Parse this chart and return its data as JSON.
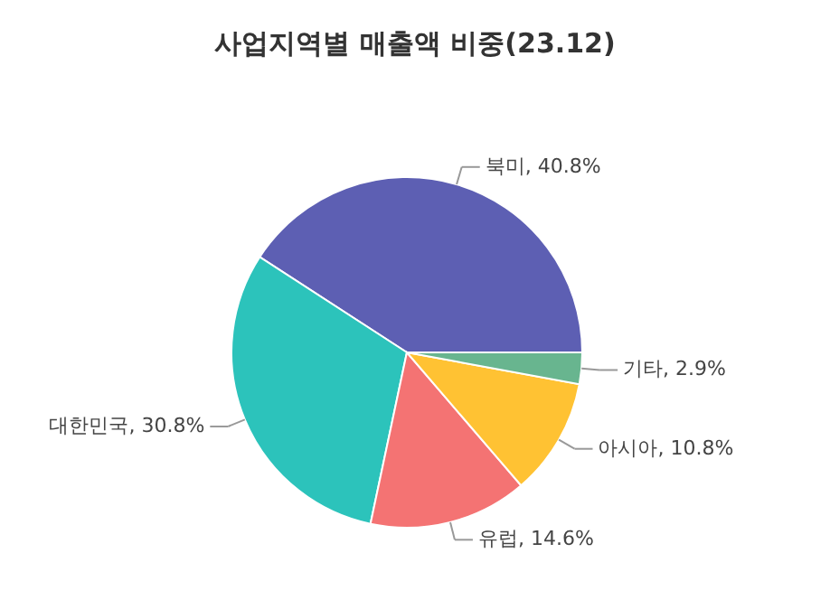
{
  "chart_data": {
    "type": "pie",
    "title": "사업지역별 매출액 비중(23.12)",
    "categories": [
      "북미",
      "대한민국",
      "유럽",
      "아시아",
      "기타"
    ],
    "values": [
      40.8,
      30.8,
      14.6,
      10.8,
      2.9
    ],
    "colors": [
      "#5d5fb3",
      "#2cc3bb",
      "#f47373",
      "#ffc233",
      "#68b58f"
    ],
    "value_labels": [
      "40.8%",
      "30.8%",
      "14.6%",
      "10.8%",
      "2.9%"
    ]
  }
}
